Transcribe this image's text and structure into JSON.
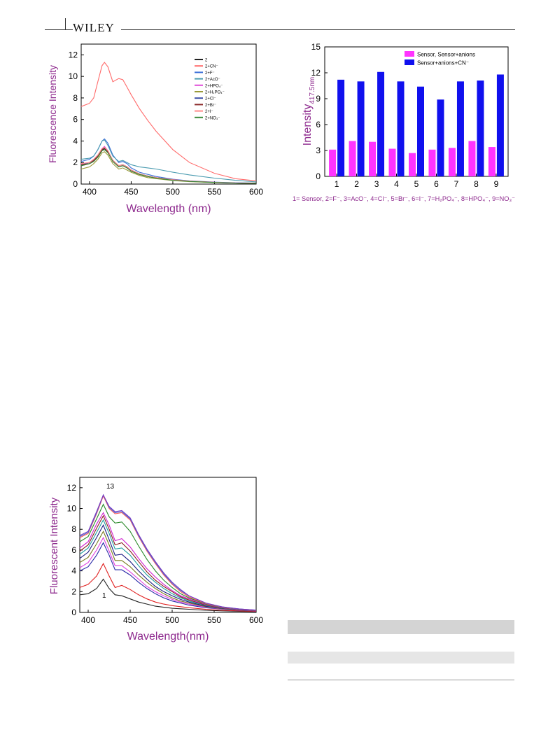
{
  "header": {
    "publisher": "WILEY"
  },
  "figure_a": {
    "chart_data": {
      "type": "line",
      "xlabel": "Wavelength (nm)",
      "ylabel": "Fluorescence Intensity",
      "xlim": [
        390,
        600
      ],
      "ylim": [
        0,
        13
      ],
      "xticks": [
        400,
        450,
        500,
        550,
        600
      ],
      "yticks": [
        0,
        2,
        4,
        6,
        8,
        10,
        12
      ],
      "grid": false,
      "legend_position": "top-right",
      "x": [
        390,
        400,
        405,
        410,
        415,
        418,
        422,
        428,
        435,
        440,
        445,
        450,
        460,
        470,
        480,
        500,
        520,
        550,
        575,
        600
      ],
      "series": [
        {
          "name": "2",
          "color": "#222222",
          "values": [
            1.7,
            1.9,
            2.1,
            2.5,
            3.1,
            3.3,
            3.0,
            2.1,
            1.6,
            1.7,
            1.5,
            1.2,
            0.9,
            0.7,
            0.55,
            0.35,
            0.25,
            0.15,
            0.1,
            0.08
          ]
        },
        {
          "name": "2+CN⁻",
          "color": "#ff6b6b",
          "values": [
            7.2,
            7.5,
            8.0,
            9.5,
            11.0,
            11.3,
            10.9,
            9.5,
            9.8,
            9.7,
            9.0,
            8.3,
            7.0,
            5.9,
            4.9,
            3.2,
            2.0,
            1.0,
            0.5,
            0.3
          ]
        },
        {
          "name": "2+F⁻",
          "color": "#3b6fd8",
          "values": [
            2.1,
            2.3,
            2.6,
            3.2,
            4.0,
            4.2,
            3.8,
            2.7,
            2.0,
            2.1,
            1.9,
            1.5,
            1.1,
            0.9,
            0.7,
            0.45,
            0.3,
            0.18,
            0.12,
            0.1
          ]
        },
        {
          "name": "2+AcO⁻",
          "color": "#4a9bb0",
          "values": [
            2.3,
            2.4,
            2.6,
            3.2,
            4.0,
            4.1,
            3.6,
            2.6,
            2.1,
            2.2,
            2.0,
            1.8,
            1.6,
            1.5,
            1.4,
            1.1,
            0.85,
            0.55,
            0.35,
            0.2
          ]
        },
        {
          "name": "2+HPO₄⁻",
          "color": "#e14fd8",
          "values": [
            1.9,
            2.0,
            2.3,
            2.7,
            3.3,
            3.5,
            3.1,
            2.2,
            1.7,
            1.8,
            1.6,
            1.3,
            0.95,
            0.75,
            0.6,
            0.4,
            0.28,
            0.17,
            0.11,
            0.09
          ]
        },
        {
          "name": "2+H₂PO₄⁻",
          "color": "#9a9a3a",
          "values": [
            1.4,
            1.6,
            1.9,
            2.3,
            2.9,
            3.0,
            2.7,
            1.9,
            1.4,
            1.5,
            1.3,
            1.1,
            0.8,
            0.6,
            0.5,
            0.33,
            0.22,
            0.14,
            0.09,
            0.07
          ]
        },
        {
          "name": "2+Cl⁻",
          "color": "#3d4fa8",
          "values": [
            1.8,
            2.0,
            2.2,
            2.6,
            3.2,
            3.4,
            3.1,
            2.2,
            1.7,
            1.8,
            1.6,
            1.3,
            0.95,
            0.75,
            0.6,
            0.4,
            0.27,
            0.16,
            0.1,
            0.08
          ]
        },
        {
          "name": "2+Br⁻",
          "color": "#8b2a2a",
          "values": [
            1.8,
            1.9,
            2.2,
            2.6,
            3.2,
            3.4,
            3.0,
            2.2,
            1.7,
            1.8,
            1.6,
            1.3,
            0.95,
            0.75,
            0.6,
            0.4,
            0.27,
            0.16,
            0.1,
            0.08
          ]
        },
        {
          "name": "2+I⁻",
          "color": "#ff8a8a",
          "values": [
            1.9,
            2.0,
            2.3,
            2.7,
            3.3,
            3.4,
            3.1,
            2.2,
            1.7,
            1.8,
            1.6,
            1.3,
            0.95,
            0.75,
            0.6,
            0.4,
            0.27,
            0.16,
            0.1,
            0.08
          ]
        },
        {
          "name": "2+NO₃⁻",
          "color": "#3a8a3a",
          "values": [
            1.7,
            1.9,
            2.1,
            2.5,
            3.1,
            3.2,
            2.9,
            2.1,
            1.6,
            1.7,
            1.5,
            1.2,
            0.9,
            0.7,
            0.55,
            0.35,
            0.25,
            0.15,
            0.1,
            0.08
          ]
        }
      ]
    }
  },
  "figure_b": {
    "chart_data": {
      "type": "bar",
      "ylabel": "Intensity",
      "ylabel_subscript": "417.5nm",
      "categories": [
        "1",
        "2",
        "3",
        "4",
        "5",
        "6",
        "7",
        "8",
        "9"
      ],
      "ylim": [
        0,
        15
      ],
      "yticks": [
        0,
        3,
        6,
        9,
        12,
        15
      ],
      "grid": false,
      "legend_position": "top-right",
      "series": [
        {
          "name": "Sensor, Sensor+anions",
          "color": "#ff33ff",
          "values": [
            3.1,
            4.1,
            4.0,
            3.2,
            2.7,
            3.1,
            3.3,
            4.1,
            3.4
          ]
        },
        {
          "name": "Sensor+anions+CN⁻",
          "color": "#1010ee",
          "values": [
            11.2,
            11.0,
            12.1,
            11.0,
            10.4,
            8.9,
            11.0,
            11.1,
            11.8
          ]
        }
      ],
      "caption": "1= Sensor, 2=F⁻, 3=AcO⁻, 4=Cl⁻, 5=Br⁻, 6=I⁻, 7=H₂PO₄⁻, 8=HPO₄⁻, 9=NO₃⁻"
    }
  },
  "figure_c": {
    "chart_data": {
      "type": "line",
      "xlabel": "Wavelength(nm)",
      "ylabel": "Fluorescent Intensity",
      "xlim": [
        390,
        600
      ],
      "ylim": [
        0,
        13
      ],
      "xticks": [
        400,
        450,
        500,
        550,
        600
      ],
      "yticks": [
        0,
        2,
        4,
        6,
        8,
        10,
        12
      ],
      "grid": false,
      "annotations": [
        "13",
        "1"
      ],
      "x": [
        390,
        400,
        410,
        418,
        425,
        432,
        440,
        450,
        460,
        470,
        480,
        490,
        500,
        510,
        520,
        540,
        560,
        580,
        600
      ],
      "series": [
        {
          "color": "#222222",
          "values": [
            1.7,
            1.8,
            2.3,
            3.2,
            2.3,
            1.7,
            1.6,
            1.3,
            1.0,
            0.8,
            0.6,
            0.5,
            0.4,
            0.35,
            0.3,
            0.2,
            0.15,
            0.1,
            0.08
          ]
        },
        {
          "color": "#e02020",
          "values": [
            2.4,
            2.7,
            3.5,
            4.7,
            3.5,
            2.4,
            2.6,
            2.2,
            1.7,
            1.3,
            1.0,
            0.8,
            0.65,
            0.55,
            0.45,
            0.3,
            0.2,
            0.15,
            0.1
          ]
        },
        {
          "color": "#2a2aa8",
          "values": [
            4.0,
            4.4,
            5.5,
            6.7,
            5.5,
            4.1,
            4.1,
            3.6,
            2.9,
            2.3,
            1.8,
            1.4,
            1.1,
            0.9,
            0.7,
            0.45,
            0.3,
            0.2,
            0.15
          ]
        },
        {
          "color": "#e040e0",
          "values": [
            4.3,
            4.8,
            6.0,
            7.2,
            5.9,
            4.5,
            4.5,
            3.9,
            3.2,
            2.5,
            2.0,
            1.6,
            1.25,
            1.0,
            0.8,
            0.5,
            0.33,
            0.22,
            0.15
          ]
        },
        {
          "color": "#7a7a20",
          "values": [
            4.8,
            5.3,
            6.6,
            7.8,
            6.5,
            5.0,
            5.0,
            4.4,
            3.6,
            2.9,
            2.3,
            1.8,
            1.4,
            1.1,
            0.9,
            0.55,
            0.35,
            0.23,
            0.16
          ]
        },
        {
          "color": "#1a1a80",
          "values": [
            5.2,
            5.8,
            7.2,
            8.4,
            7.0,
            5.5,
            5.6,
            4.9,
            4.0,
            3.2,
            2.5,
            2.0,
            1.6,
            1.25,
            1.0,
            0.6,
            0.38,
            0.25,
            0.17
          ]
        },
        {
          "color": "#20a0a0",
          "values": [
            5.6,
            6.2,
            7.7,
            8.9,
            7.6,
            6.1,
            6.2,
            5.5,
            4.5,
            3.6,
            2.9,
            2.3,
            1.8,
            1.4,
            1.1,
            0.65,
            0.4,
            0.26,
            0.18
          ]
        },
        {
          "color": "#8a2020",
          "values": [
            5.9,
            6.5,
            8.1,
            9.3,
            8.0,
            6.5,
            6.7,
            5.9,
            4.9,
            3.9,
            3.1,
            2.5,
            2.0,
            1.5,
            1.2,
            0.7,
            0.42,
            0.27,
            0.18
          ]
        },
        {
          "color": "#d020d0",
          "values": [
            6.2,
            6.8,
            8.5,
            9.6,
            8.4,
            6.9,
            7.1,
            6.3,
            5.2,
            4.2,
            3.4,
            2.7,
            2.1,
            1.6,
            1.3,
            0.75,
            0.45,
            0.28,
            0.19
          ]
        },
        {
          "color": "#2a8a2a",
          "values": [
            6.8,
            7.3,
            9.0,
            10.4,
            9.2,
            8.6,
            8.7,
            7.8,
            6.4,
            5.1,
            4.0,
            3.1,
            2.4,
            1.8,
            1.4,
            0.8,
            0.48,
            0.3,
            0.2
          ]
        },
        {
          "color": "#ff5a5a",
          "values": [
            7.2,
            7.6,
            9.5,
            11.2,
            10.0,
            9.5,
            9.6,
            8.9,
            7.3,
            5.9,
            4.7,
            3.6,
            2.7,
            2.0,
            1.5,
            0.85,
            0.5,
            0.32,
            0.21
          ]
        },
        {
          "color": "#4a6ad8",
          "values": [
            7.3,
            7.7,
            9.6,
            11.3,
            10.1,
            9.6,
            9.7,
            9.0,
            7.4,
            6.0,
            4.8,
            3.7,
            2.8,
            2.1,
            1.6,
            0.9,
            0.52,
            0.33,
            0.22
          ]
        },
        {
          "color": "#7a3ac0",
          "values": [
            7.4,
            7.8,
            9.7,
            11.3,
            10.2,
            9.7,
            9.8,
            9.1,
            7.5,
            6.1,
            4.9,
            3.8,
            2.9,
            2.2,
            1.6,
            0.9,
            0.53,
            0.34,
            0.22
          ]
        }
      ]
    }
  }
}
